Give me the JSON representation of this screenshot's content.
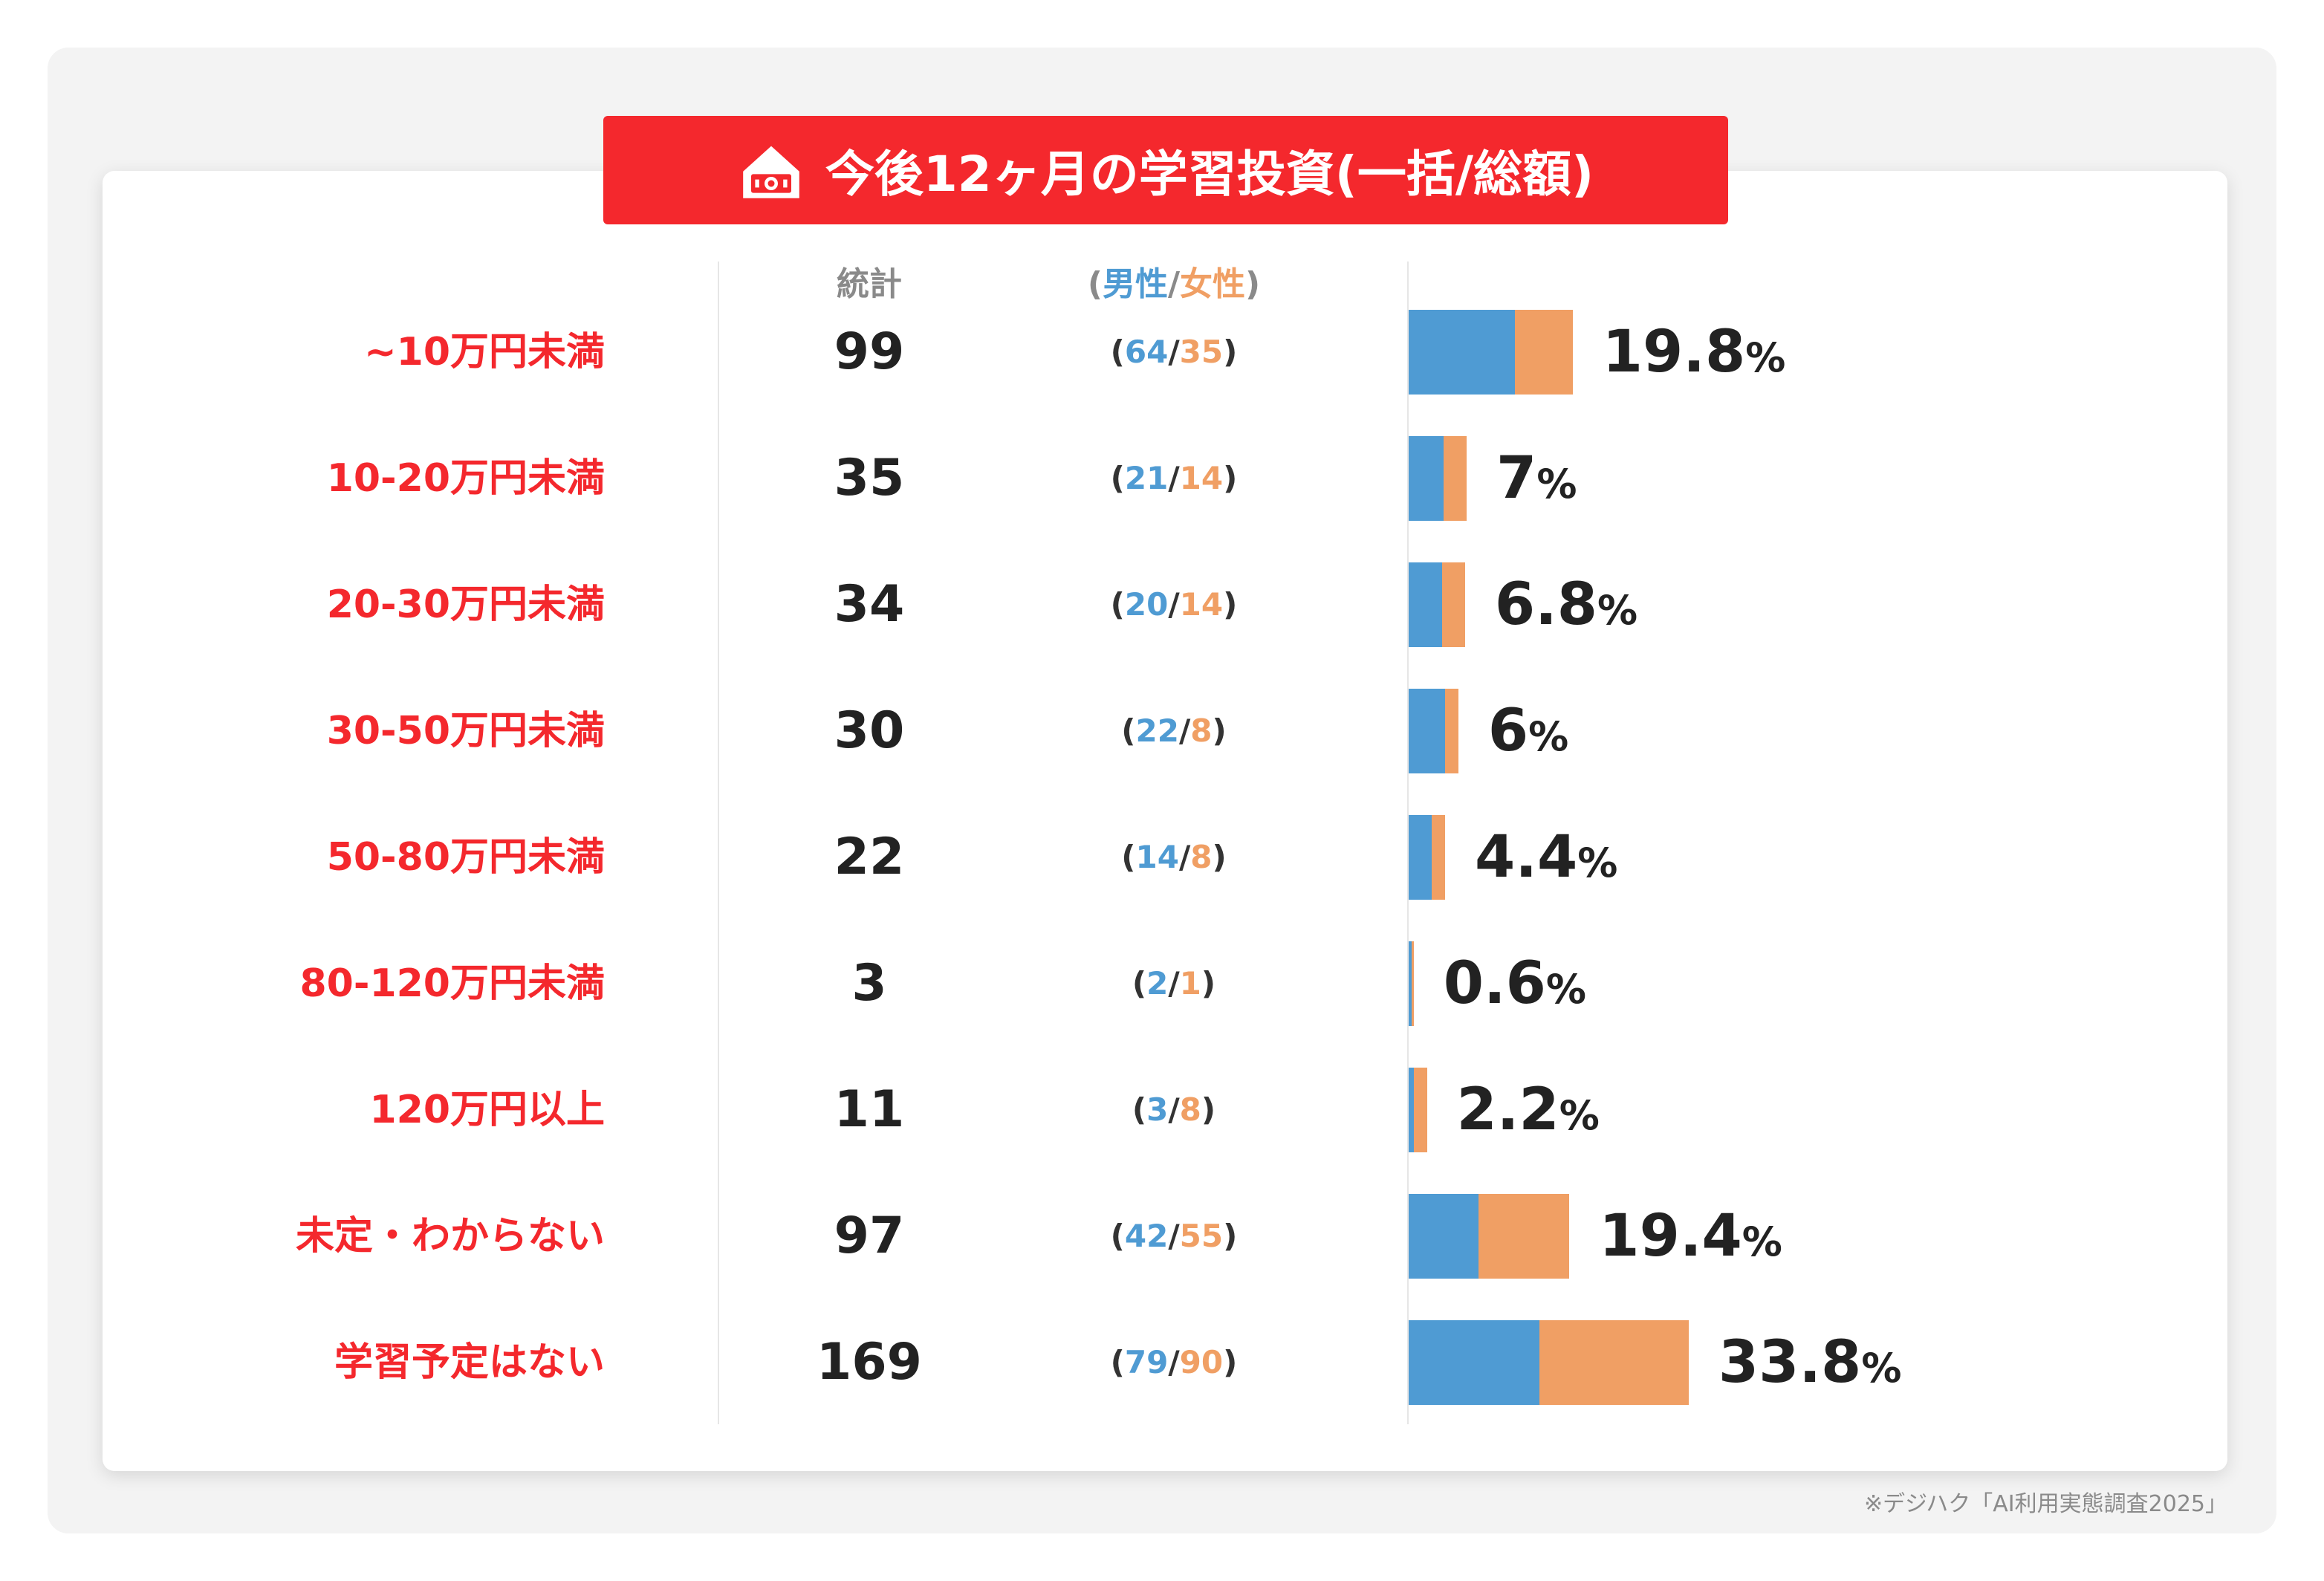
{
  "title": "今後12ヶ月の学習投資(一括/総額)",
  "headers": {
    "stat": "統計",
    "gender_open": "(",
    "male": "男性",
    "slash": "/",
    "female": "女性",
    "gender_close": ")"
  },
  "colors": {
    "male": "#4f9bd3",
    "female": "#f09f64",
    "accent": "#f4282d"
  },
  "source": "※デジハク「AI利用実態調査2025」",
  "chart_data": {
    "type": "bar",
    "orientation": "horizontal",
    "stacked": true,
    "title": "今後12ヶ月の学習投資(一括/総額)",
    "categories": [
      "~10万円未満",
      "10-20万円未満",
      "20-30万円未満",
      "30-50万円未満",
      "50-80万円未満",
      "80-120万円未満",
      "120万円以上",
      "未定・わからない",
      "学習予定はない"
    ],
    "totals": [
      99,
      35,
      34,
      30,
      22,
      3,
      11,
      97,
      169
    ],
    "series": [
      {
        "name": "男性",
        "values": [
          64,
          21,
          20,
          22,
          14,
          2,
          3,
          42,
          79
        ]
      },
      {
        "name": "女性",
        "values": [
          35,
          14,
          14,
          8,
          8,
          1,
          8,
          55,
          90
        ]
      }
    ],
    "percent_labels": [
      "19.8",
      "7",
      "6.8",
      "6",
      "4.4",
      "0.6",
      "2.2",
      "19.4",
      "33.8"
    ],
    "percent_sign": "%"
  }
}
